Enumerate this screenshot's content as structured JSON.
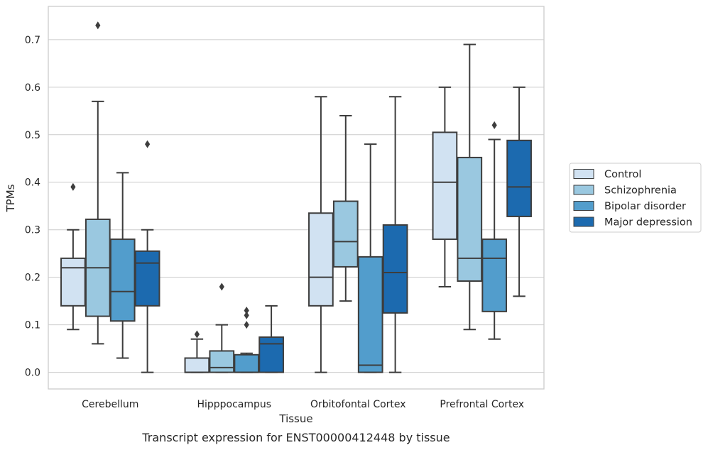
{
  "chart_data": {
    "type": "box",
    "caption": "Transcript expression for ENST00000412448 by tissue",
    "xlabel": "Tissue",
    "ylabel": "TPMs",
    "ylim": [
      -0.035,
      0.77
    ],
    "yticks": [
      "0.0",
      "0.1",
      "0.2",
      "0.3",
      "0.4",
      "0.5",
      "0.6",
      "0.7"
    ],
    "grid": "horizontal",
    "legend_position": "right",
    "categories": [
      "Cerebellum",
      "Hipppocampus",
      "Orbitofontal Cortex",
      "Prefrontal Cortex"
    ],
    "series": [
      {
        "name": "Control",
        "color": "#d1e2f2",
        "boxes": [
          {
            "whisker_low": 0.09,
            "q1": 0.14,
            "median": 0.22,
            "q3": 0.24,
            "whisker_high": 0.3,
            "outliers": [
              0.39
            ]
          },
          {
            "whisker_low": 0.0,
            "q1": 0.0,
            "median": 0.0,
            "q3": 0.03,
            "whisker_high": 0.07,
            "outliers": [
              0.08
            ]
          },
          {
            "whisker_low": 0.0,
            "q1": 0.14,
            "median": 0.2,
            "q3": 0.335,
            "whisker_high": 0.58,
            "outliers": []
          },
          {
            "whisker_low": 0.18,
            "q1": 0.28,
            "median": 0.4,
            "q3": 0.505,
            "whisker_high": 0.6,
            "outliers": []
          }
        ]
      },
      {
        "name": "Schizophrenia",
        "color": "#9ac8e0",
        "boxes": [
          {
            "whisker_low": 0.06,
            "q1": 0.118,
            "median": 0.22,
            "q3": 0.322,
            "whisker_high": 0.57,
            "outliers": [
              0.73
            ]
          },
          {
            "whisker_low": 0.0,
            "q1": 0.0,
            "median": 0.01,
            "q3": 0.045,
            "whisker_high": 0.1,
            "outliers": [
              0.18
            ]
          },
          {
            "whisker_low": 0.15,
            "q1": 0.222,
            "median": 0.275,
            "q3": 0.36,
            "whisker_high": 0.54,
            "outliers": []
          },
          {
            "whisker_low": 0.09,
            "q1": 0.192,
            "median": 0.24,
            "q3": 0.452,
            "whisker_high": 0.69,
            "outliers": []
          }
        ]
      },
      {
        "name": "Bipolar disorder",
        "color": "#529dcc",
        "boxes": [
          {
            "whisker_low": 0.03,
            "q1": 0.108,
            "median": 0.17,
            "q3": 0.28,
            "whisker_high": 0.42,
            "outliers": []
          },
          {
            "whisker_low": 0.0,
            "q1": 0.0,
            "median": 0.0,
            "q3": 0.037,
            "whisker_high": 0.04,
            "outliers": [
              0.1,
              0.12,
              0.13
            ]
          },
          {
            "whisker_low": 0.0,
            "q1": 0.0,
            "median": 0.015,
            "q3": 0.243,
            "whisker_high": 0.48,
            "outliers": []
          },
          {
            "whisker_low": 0.07,
            "q1": 0.128,
            "median": 0.24,
            "q3": 0.28,
            "whisker_high": 0.49,
            "outliers": [
              0.52
            ]
          }
        ]
      },
      {
        "name": "Major depression",
        "color": "#1c6aaf",
        "boxes": [
          {
            "whisker_low": 0.0,
            "q1": 0.14,
            "median": 0.23,
            "q3": 0.255,
            "whisker_high": 0.3,
            "outliers": [
              0.48
            ]
          },
          {
            "whisker_low": 0.0,
            "q1": 0.0,
            "median": 0.06,
            "q3": 0.074,
            "whisker_high": 0.14,
            "outliers": []
          },
          {
            "whisker_low": 0.0,
            "q1": 0.125,
            "median": 0.21,
            "q3": 0.31,
            "whisker_high": 0.58,
            "outliers": []
          },
          {
            "whisker_low": 0.16,
            "q1": 0.328,
            "median": 0.39,
            "q3": 0.488,
            "whisker_high": 0.6,
            "outliers": []
          }
        ]
      }
    ]
  }
}
